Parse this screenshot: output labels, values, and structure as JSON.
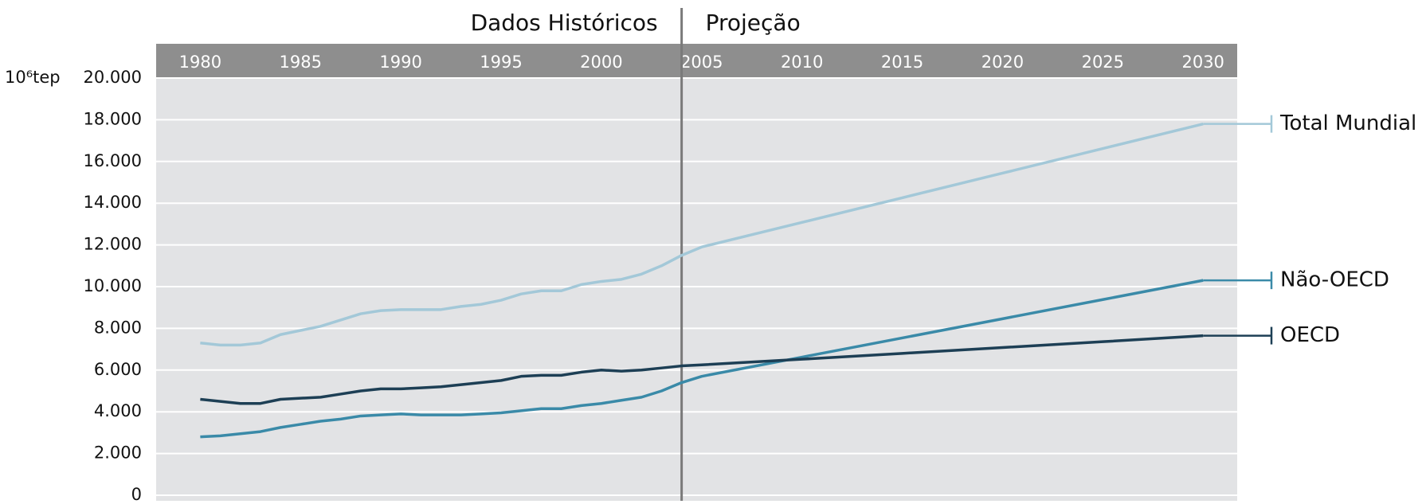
{
  "chart_data": {
    "type": "line",
    "y_unit_label": "10⁶tep",
    "annotations": [
      "Dados Históricos",
      "Projeção"
    ],
    "divider_x": 2004,
    "x": [
      1980,
      1981,
      1982,
      1983,
      1984,
      1985,
      1986,
      1987,
      1988,
      1989,
      1990,
      1991,
      1992,
      1993,
      1994,
      1995,
      1996,
      1997,
      1998,
      1999,
      2000,
      2001,
      2002,
      2003,
      2004,
      2005,
      2010,
      2015,
      2020,
      2025,
      2030
    ],
    "series": [
      {
        "name": "Total Mundial",
        "color": "#a3c8d8",
        "values": [
          7300,
          7200,
          7200,
          7300,
          7700,
          7900,
          8100,
          8400,
          8700,
          8850,
          8900,
          8900,
          8900,
          9050,
          9150,
          9350,
          9650,
          9800,
          9800,
          10100,
          10250,
          10350,
          10600,
          11000,
          11500,
          11900,
          13080,
          14260,
          15440,
          16620,
          17800
        ]
      },
      {
        "name": "Não-OECD",
        "color": "#3a8aa8",
        "values": [
          2800,
          2850,
          2950,
          3050,
          3250,
          3400,
          3550,
          3650,
          3800,
          3850,
          3900,
          3850,
          3850,
          3850,
          3900,
          3950,
          4050,
          4150,
          4150,
          4300,
          4400,
          4550,
          4700,
          5000,
          5400,
          5700,
          6620,
          7540,
          8460,
          9380,
          10300
        ]
      },
      {
        "name": "OECD",
        "color": "#1d3f55",
        "values": [
          4600,
          4500,
          4400,
          4400,
          4600,
          4650,
          4700,
          4850,
          5000,
          5100,
          5100,
          5150,
          5200,
          5300,
          5400,
          5500,
          5700,
          5750,
          5750,
          5900,
          6000,
          5950,
          6000,
          6100,
          6200,
          6250,
          6520,
          6800,
          7080,
          7360,
          7650
        ]
      }
    ],
    "xlim": [
      1977.8,
      2031.7
    ],
    "xticks": [
      1980,
      1985,
      1990,
      1995,
      2000,
      2005,
      2010,
      2015,
      2020,
      2025,
      2030
    ],
    "ylim": [
      0,
      20000
    ],
    "yticks": [
      0,
      {
        "value": 2000,
        "label": "2.000"
      },
      {
        "value": 4000,
        "label": "4.000"
      },
      {
        "value": 6000,
        "label": "6.000"
      },
      {
        "value": 8000,
        "label": "8.000"
      },
      {
        "value": 10000,
        "label": "10.000"
      },
      {
        "value": 12000,
        "label": "12.000"
      },
      {
        "value": 14000,
        "label": "14.000"
      },
      {
        "value": 16000,
        "label": "16.000"
      },
      {
        "value": 18000,
        "label": "18.000"
      },
      {
        "value": 20000,
        "label": "20.000"
      }
    ],
    "grid": true
  }
}
